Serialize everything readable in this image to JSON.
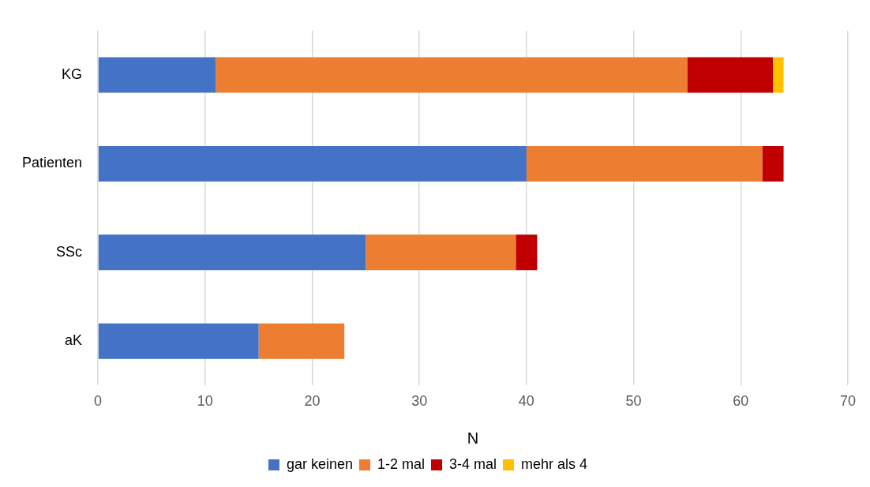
{
  "chart_data": {
    "type": "bar",
    "orientation": "horizontal",
    "stacked": true,
    "xlabel": "N",
    "categories": [
      "KG",
      "Patienten",
      "SSc",
      "aK"
    ],
    "series": [
      {
        "name": "gar keinen",
        "color": "#4472c4",
        "values": [
          11,
          40,
          25,
          15
        ]
      },
      {
        "name": "1-2 mal",
        "color": "#ed7d31",
        "values": [
          44,
          22,
          14,
          8
        ]
      },
      {
        "name": "3-4 mal",
        "color": "#c00000",
        "values": [
          8,
          2,
          2,
          null
        ]
      },
      {
        "name": "mehr als 4",
        "color": "#ffc000",
        "values": [
          1,
          null,
          null,
          null
        ]
      }
    ],
    "xlim": [
      0,
      70
    ],
    "xticks": [
      0,
      10,
      20,
      30,
      40,
      50,
      60,
      70
    ],
    "grid": "x",
    "legend": "bottom"
  }
}
